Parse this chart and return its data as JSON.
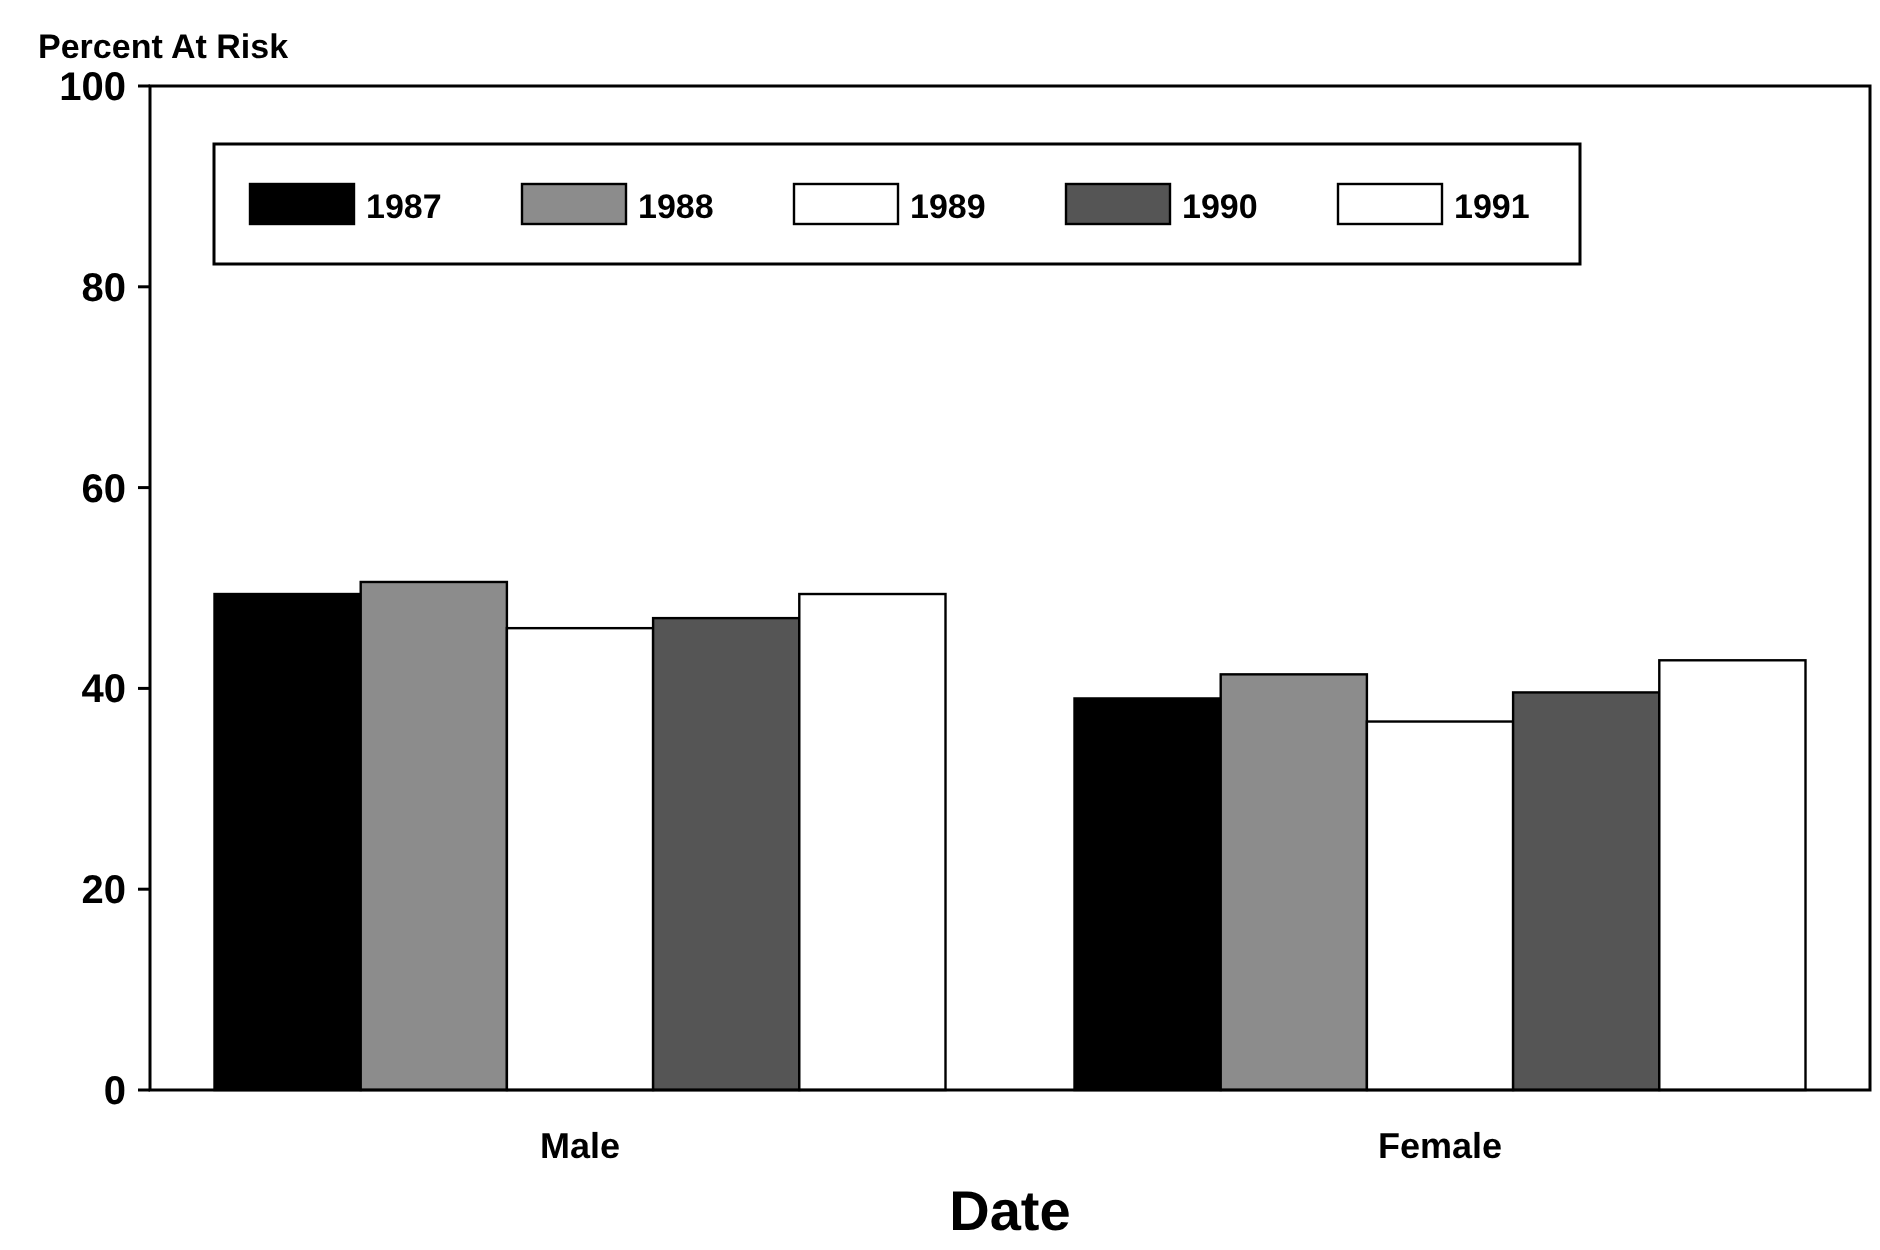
{
  "chart_data": {
    "type": "bar",
    "ylabel": "Percent At Risk",
    "xlabel": "Date",
    "categories": [
      "Male",
      "Female"
    ],
    "series": [
      {
        "name": "1987",
        "color": "#000000",
        "values": [
          49.4,
          39
        ]
      },
      {
        "name": "1988",
        "color": "#8c8c8c",
        "values": [
          50.6,
          41.4
        ]
      },
      {
        "name": "1989",
        "color": "#ffffff",
        "values": [
          46,
          36.7
        ]
      },
      {
        "name": "1990",
        "color": "#555555",
        "values": [
          47,
          39.6
        ]
      },
      {
        "name": "1991",
        "color": "#ffffff",
        "values": [
          49.4,
          42.8
        ]
      }
    ],
    "ylim": [
      0,
      100
    ],
    "yticks": [
      0,
      20,
      40,
      60,
      80,
      100
    ],
    "legend": "top left",
    "grid": false
  }
}
